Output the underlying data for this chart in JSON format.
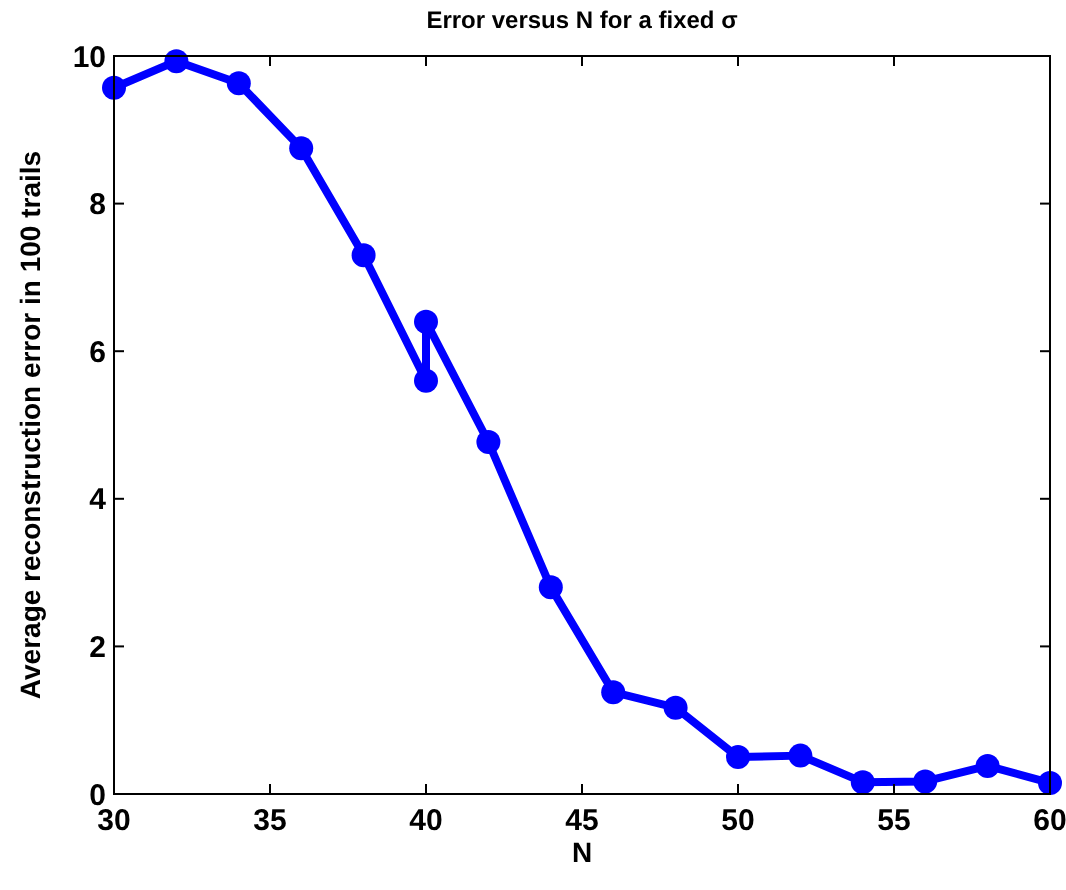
{
  "chart_data": {
    "type": "line",
    "title": "Error versus N for a fixed σ",
    "xlabel": "N",
    "ylabel": "Average reconstruction error in 100 trails",
    "x": [
      30,
      32,
      34,
      36,
      38,
      40,
      40,
      42,
      44,
      46,
      48,
      50,
      52,
      54,
      56,
      58,
      60
    ],
    "series": [
      {
        "color": "#0000ff",
        "values": [
          9.57,
          9.93,
          9.63,
          8.75,
          7.3,
          5.6,
          6.4,
          4.77,
          2.8,
          1.38,
          1.17,
          0.5,
          0.52,
          0.16,
          0.17,
          0.38,
          0.15
        ]
      }
    ],
    "xlim": [
      30,
      60
    ],
    "xticks": [
      30,
      35,
      40,
      45,
      50,
      55,
      60
    ],
    "ylim": [
      0,
      10
    ],
    "yticks": [
      0,
      2,
      4,
      6,
      8,
      10
    ],
    "grid": false,
    "marker": "circle",
    "line_style": "solid"
  }
}
